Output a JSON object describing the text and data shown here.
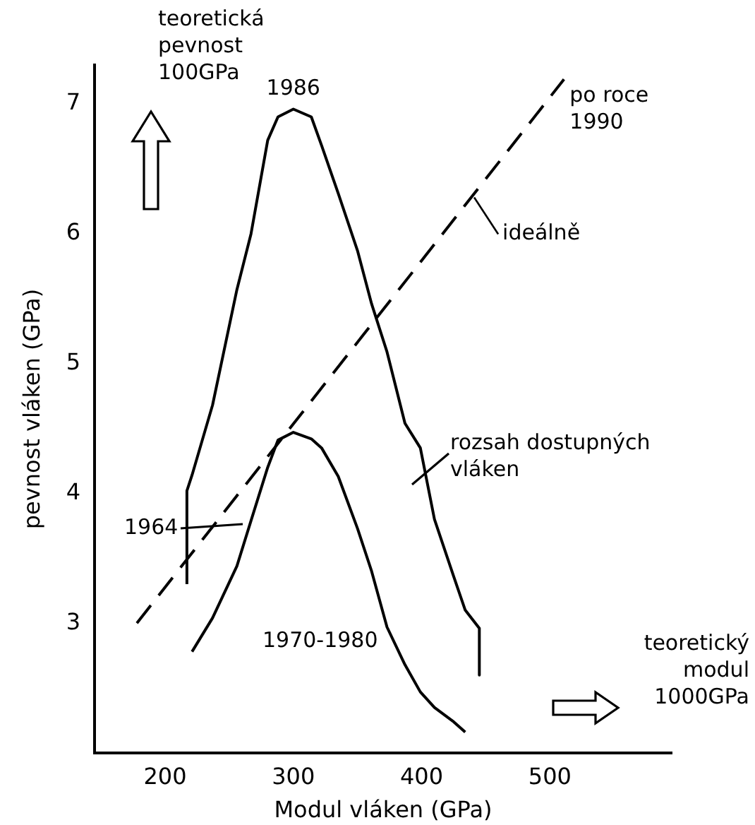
{
  "chart_data": {
    "type": "line",
    "xlabel": "Modul vláken (GPa)",
    "ylabel": "pevnost vláken (GPa)",
    "xlim": [
      145,
      595
    ],
    "ylim": [
      2,
      7.3
    ],
    "xticks": [
      200,
      300,
      400,
      500
    ],
    "yticks": [
      3,
      4,
      5,
      6,
      7
    ],
    "marker": "none",
    "series": [
      {
        "color": "#000000",
        "x": [
          217,
          217,
          221,
          237,
          256,
          267,
          280,
          288,
          300,
          314,
          322,
          335,
          350,
          361,
          373,
          387,
          399,
          410,
          425,
          434,
          445,
          445
        ],
        "values": [
          3.3,
          4.02,
          4.14,
          4.68,
          5.57,
          6.0,
          6.72,
          6.9,
          6.96,
          6.9,
          6.68,
          6.31,
          5.87,
          5.46,
          5.09,
          4.54,
          4.35,
          3.8,
          3.36,
          3.1,
          2.96,
          2.6
        ]
      },
      {
        "color": "#000000",
        "x": [
          221,
          237,
          256,
          267,
          280,
          288,
          300,
          314,
          322,
          335,
          350,
          361,
          373,
          387,
          399,
          410,
          425,
          434
        ],
        "values": [
          2.78,
          3.04,
          3.44,
          3.79,
          4.2,
          4.41,
          4.47,
          4.42,
          4.35,
          4.13,
          3.73,
          3.4,
          2.97,
          2.68,
          2.47,
          2.35,
          2.24,
          2.16
        ]
      },
      {
        "color": "#000000",
        "line_style": "dashed",
        "x": [
          178,
          511
        ],
        "values": [
          3.0,
          7.19
        ]
      }
    ],
    "annotations": [
      "teoretická\npevnost\n100GPa",
      "teoretický\nmodul\n1000GPa",
      {
        "text": "1986",
        "x": 300,
        "y": 6.96
      },
      "1964",
      "rozsah dostupných\nvláken",
      {
        "text": "ideálně",
        "x": 441,
        "y": 6.28
      },
      {
        "text": "po roce\n1990",
        "x": 511,
        "y": 7.19
      },
      "1970-1980"
    ]
  }
}
